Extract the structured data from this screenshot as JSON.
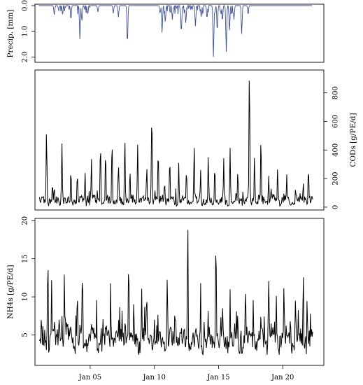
{
  "chart_data": [
    {
      "type": "line",
      "panel": "precipitation",
      "ylabel": "Precip. [mm]",
      "y_axis": "left, reversed",
      "ylim": [
        2.0,
        0.0
      ],
      "y_ticks": [
        0.0,
        1.0,
        2.0
      ],
      "y_tick_labels": [
        "0.0",
        "1.0",
        "2.0"
      ],
      "xlim_days": [
        0.7,
        23.2
      ],
      "line_color": "#3b4ea0",
      "series": [
        {
          "values": [
            {
              "x": 2.2,
              "y": 0.35
            },
            {
              "x": 2.55,
              "y": 0.2
            },
            {
              "x": 3.5,
              "y": 0.55
            },
            {
              "x": 4.2,
              "y": 1.3
            },
            {
              "x": 4.35,
              "y": 0.6
            },
            {
              "x": 4.8,
              "y": 0.3
            },
            {
              "x": 5.6,
              "y": 0.25
            },
            {
              "x": 6.8,
              "y": 0.3
            },
            {
              "x": 7.2,
              "y": 0.45
            },
            {
              "x": 7.9,
              "y": 1.5
            },
            {
              "x": 10.45,
              "y": 0.3
            },
            {
              "x": 10.6,
              "y": 1.05
            },
            {
              "x": 10.85,
              "y": 0.65
            },
            {
              "x": 11.4,
              "y": 0.55
            },
            {
              "x": 12.1,
              "y": 1.05
            },
            {
              "x": 12.45,
              "y": 0.7
            },
            {
              "x": 13.2,
              "y": 0.8
            },
            {
              "x": 13.65,
              "y": 0.45
            },
            {
              "x": 14.1,
              "y": 0.5
            },
            {
              "x": 14.6,
              "y": 2.0
            },
            {
              "x": 14.9,
              "y": 1.0
            },
            {
              "x": 15.3,
              "y": 0.6
            },
            {
              "x": 15.6,
              "y": 1.8
            },
            {
              "x": 15.85,
              "y": 1.0
            },
            {
              "x": 16.2,
              "y": 0.55
            },
            {
              "x": 16.8,
              "y": 1.1
            },
            {
              "x": 17.3,
              "y": 0.35
            }
          ]
        }
      ]
    },
    {
      "type": "line",
      "panel": "cod",
      "ylabel": "CODs [g/PE/d]",
      "y_axis": "right",
      "ylim": [
        -20,
        960
      ],
      "y_ticks": [
        0,
        200,
        400,
        600,
        800
      ],
      "y_tick_labels": [
        "0",
        "200",
        "400",
        "600",
        "800"
      ],
      "xlim_days": [
        0.7,
        23.2
      ],
      "line_color": "#000000",
      "peaks": [
        {
          "x": 1.3,
          "y": 80
        },
        {
          "x": 1.6,
          "y": 520
        },
        {
          "x": 2.2,
          "y": 140
        },
        {
          "x": 2.8,
          "y": 420
        },
        {
          "x": 3.5,
          "y": 260
        },
        {
          "x": 4.0,
          "y": 240
        },
        {
          "x": 4.6,
          "y": 240
        },
        {
          "x": 5.1,
          "y": 320
        },
        {
          "x": 5.8,
          "y": 430
        },
        {
          "x": 6.2,
          "y": 380
        },
        {
          "x": 6.7,
          "y": 460
        },
        {
          "x": 7.2,
          "y": 300
        },
        {
          "x": 7.7,
          "y": 470
        },
        {
          "x": 8.1,
          "y": 250
        },
        {
          "x": 8.7,
          "y": 420
        },
        {
          "x": 9.4,
          "y": 240
        },
        {
          "x": 9.8,
          "y": 650
        },
        {
          "x": 10.3,
          "y": 370
        },
        {
          "x": 10.8,
          "y": 160
        },
        {
          "x": 11.2,
          "y": 340
        },
        {
          "x": 11.9,
          "y": 250
        },
        {
          "x": 12.5,
          "y": 260
        },
        {
          "x": 13.1,
          "y": 430
        },
        {
          "x": 13.6,
          "y": 250
        },
        {
          "x": 14.2,
          "y": 340
        },
        {
          "x": 14.7,
          "y": 250
        },
        {
          "x": 15.4,
          "y": 300
        },
        {
          "x": 15.9,
          "y": 390
        },
        {
          "x": 16.5,
          "y": 250
        },
        {
          "x": 17.4,
          "y": 930
        },
        {
          "x": 17.8,
          "y": 350
        },
        {
          "x": 18.3,
          "y": 480
        },
        {
          "x": 18.9,
          "y": 180
        },
        {
          "x": 19.6,
          "y": 260
        },
        {
          "x": 20.3,
          "y": 160
        },
        {
          "x": 21.0,
          "y": 130
        },
        {
          "x": 21.6,
          "y": 180
        },
        {
          "x": 22.0,
          "y": 280
        },
        {
          "x": 22.3,
          "y": 70
        }
      ]
    },
    {
      "type": "line",
      "panel": "nh4",
      "ylabel": "NH4s [g/PE/d]",
      "y_axis": "left",
      "ylim": [
        1.0,
        20.3
      ],
      "y_ticks": [
        5,
        10,
        15,
        20
      ],
      "y_tick_labels": [
        "5",
        "10",
        "15",
        "20"
      ],
      "xlim_days": [
        0.7,
        23.2
      ],
      "line_color": "#000000",
      "x_tick_days": [
        5,
        10,
        15,
        20
      ],
      "x_tick_labels": [
        "Jan 05",
        "Jan 10",
        "Jan 15",
        "Jan 20"
      ],
      "peaks": [
        {
          "x": 1.2,
          "y": 7.3
        },
        {
          "x": 1.45,
          "y": 2.3
        },
        {
          "x": 1.7,
          "y": 13.5
        },
        {
          "x": 2.0,
          "y": 12.0
        },
        {
          "x": 2.6,
          "y": 8.0
        },
        {
          "x": 3.0,
          "y": 11.0
        },
        {
          "x": 3.5,
          "y": 7.0
        },
        {
          "x": 4.0,
          "y": 11.3
        },
        {
          "x": 4.4,
          "y": 13.8
        },
        {
          "x": 4.9,
          "y": 6.0
        },
        {
          "x": 5.5,
          "y": 9.5
        },
        {
          "x": 6.0,
          "y": 7.0
        },
        {
          "x": 6.6,
          "y": 10.0
        },
        {
          "x": 7.2,
          "y": 7.5
        },
        {
          "x": 7.7,
          "y": 6.5
        },
        {
          "x": 8.0,
          "y": 15.0
        },
        {
          "x": 8.4,
          "y": 9.5
        },
        {
          "x": 9.0,
          "y": 8.5
        },
        {
          "x": 9.4,
          "y": 11.0
        },
        {
          "x": 10.0,
          "y": 7.0
        },
        {
          "x": 10.4,
          "y": 1.2
        },
        {
          "x": 11.0,
          "y": 11.5
        },
        {
          "x": 11.6,
          "y": 9.0
        },
        {
          "x": 12.1,
          "y": 7.0
        },
        {
          "x": 12.6,
          "y": 19.7
        },
        {
          "x": 13.0,
          "y": 6.0
        },
        {
          "x": 13.6,
          "y": 11.5
        },
        {
          "x": 14.2,
          "y": 8.5
        },
        {
          "x": 14.8,
          "y": 16.7
        },
        {
          "x": 15.3,
          "y": 9.0
        },
        {
          "x": 15.9,
          "y": 10.5
        },
        {
          "x": 16.5,
          "y": 8.0
        },
        {
          "x": 17.1,
          "y": 11.0
        },
        {
          "x": 17.7,
          "y": 9.0
        },
        {
          "x": 18.3,
          "y": 8.0
        },
        {
          "x": 18.9,
          "y": 12.9
        },
        {
          "x": 19.5,
          "y": 9.5
        },
        {
          "x": 20.1,
          "y": 12.0
        },
        {
          "x": 20.6,
          "y": 8.0
        },
        {
          "x": 21.0,
          "y": 10.0
        },
        {
          "x": 21.4,
          "y": 6.0
        },
        {
          "x": 21.6,
          "y": 14.0
        },
        {
          "x": 21.9,
          "y": 10.0
        },
        {
          "x": 22.2,
          "y": 3.5
        }
      ]
    }
  ]
}
